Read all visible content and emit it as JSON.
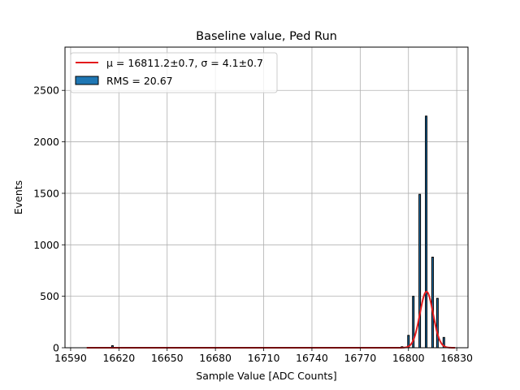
{
  "chart_data": {
    "type": "bar",
    "title": "Baseline value, Ped Run",
    "xlabel": "Sample Value [ADC Counts]",
    "ylabel": "Events",
    "xlim": [
      16586.5,
      16837.0
    ],
    "ylim": [
      0,
      2920
    ],
    "xticks": [
      16590,
      16620,
      16650,
      16680,
      16710,
      16740,
      16770,
      16800,
      16830
    ],
    "yticks": [
      0,
      500,
      1000,
      1500,
      2000,
      2500
    ],
    "grid": true,
    "legend_position": "top-left",
    "colors": {
      "bar_fill": "#1f77b4",
      "bar_edge": "#000000",
      "fit_line": "#e31a1c",
      "grid": "#b0b0b0"
    },
    "series": [
      {
        "name": "RMS = 20.67",
        "kind": "histogram",
        "bins": [
          {
            "x": 16616,
            "value": 20
          },
          {
            "x": 16796,
            "value": 10
          },
          {
            "x": 16800,
            "value": 120
          },
          {
            "x": 16803,
            "value": 500
          },
          {
            "x": 16807,
            "value": 1490
          },
          {
            "x": 16811,
            "value": 2250
          },
          {
            "x": 16815,
            "value": 880
          },
          {
            "x": 16818,
            "value": 480
          },
          {
            "x": 16822,
            "value": 100
          }
        ]
      },
      {
        "name": "μ = 16811.2±0.7, σ = 4.1±0.7",
        "kind": "gaussian_fit",
        "mean": 16811.2,
        "sigma": 4.1,
        "amplitude": 545,
        "x_range": [
          16600,
          16829
        ]
      }
    ]
  }
}
